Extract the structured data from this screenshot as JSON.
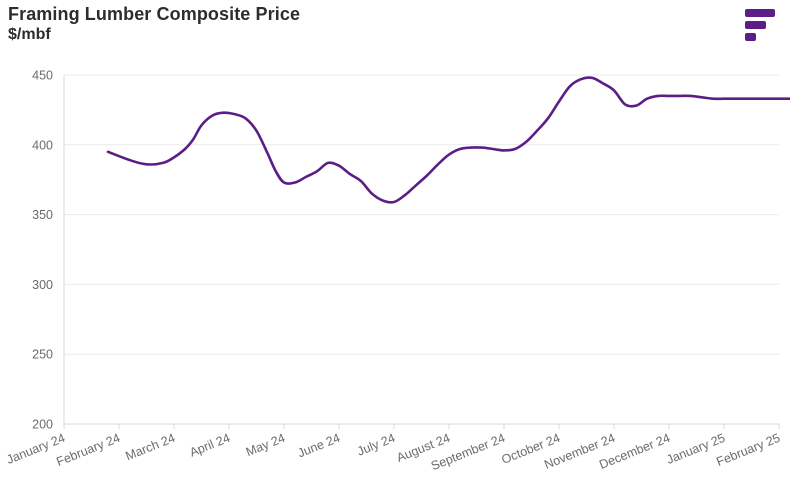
{
  "header": {
    "title": "Framing Lumber Composite Price",
    "subtitle": "$/mbf"
  },
  "logo": {
    "icon": "brand-logo-icon",
    "color": "#5b1e86"
  },
  "chart_data": {
    "type": "line",
    "title": "Framing Lumber Composite Price",
    "subtitle": "$/mbf",
    "xlabel": "",
    "ylabel": "",
    "ylim": [
      200,
      450
    ],
    "yticks": [
      200,
      250,
      300,
      350,
      400,
      450
    ],
    "xticks": [
      "January 24",
      "February 24",
      "March 24",
      "April 24",
      "May 24",
      "June 24",
      "July 24",
      "August 24",
      "September 24",
      "October 24",
      "November 24",
      "December 24",
      "January 25",
      "February 25"
    ],
    "grid": true,
    "legend": "none",
    "line_color": "#5b1e86",
    "series": [
      {
        "x": [
          0.8,
          1.2,
          1.5,
          1.8,
          2.0,
          2.2,
          2.35,
          2.5,
          2.7,
          2.9,
          3.1,
          3.3,
          3.5,
          3.7,
          3.85,
          4.0,
          4.2,
          4.4,
          4.6,
          4.8,
          5.0,
          5.2,
          5.4,
          5.6,
          5.8,
          6.0,
          6.2,
          6.4,
          6.6,
          6.8,
          7.0,
          7.2,
          7.4,
          7.6,
          7.8,
          8.0,
          8.2,
          8.4,
          8.6,
          8.8,
          9.0,
          9.2,
          9.4,
          9.6,
          9.8,
          10.0,
          10.2,
          10.4,
          10.6,
          10.8,
          11.0,
          11.2,
          11.4,
          11.6,
          11.8,
          12.0,
          12.2,
          12.4,
          12.6,
          12.8,
          13.0,
          13.2,
          13.4,
          13.5,
          13.7
        ],
        "values": [
          395,
          389,
          386,
          387,
          391,
          397,
          404,
          414,
          421,
          423,
          422,
          419,
          410,
          394,
          381,
          373,
          373,
          377,
          381,
          387,
          385,
          379,
          374,
          365,
          360,
          359,
          364,
          371,
          378,
          386,
          393,
          397,
          398,
          398,
          397,
          396,
          397,
          402,
          410,
          419,
          431,
          442,
          447,
          448,
          444,
          439,
          429,
          428,
          433,
          435,
          435,
          435,
          435,
          434,
          433,
          433,
          433,
          433,
          433,
          433,
          433,
          433,
          433,
          433,
          433
        ]
      }
    ]
  }
}
